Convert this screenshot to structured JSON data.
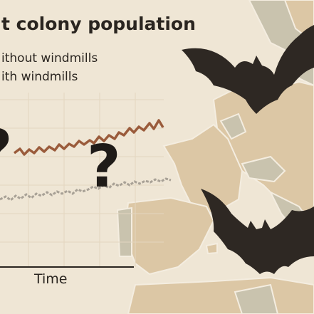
{
  "title": "t colony population",
  "legend": {
    "items": [
      "ithout windmills",
      "ith windmills"
    ]
  },
  "x_axis_label": "Time",
  "marks": [
    "?",
    "?"
  ]
}
